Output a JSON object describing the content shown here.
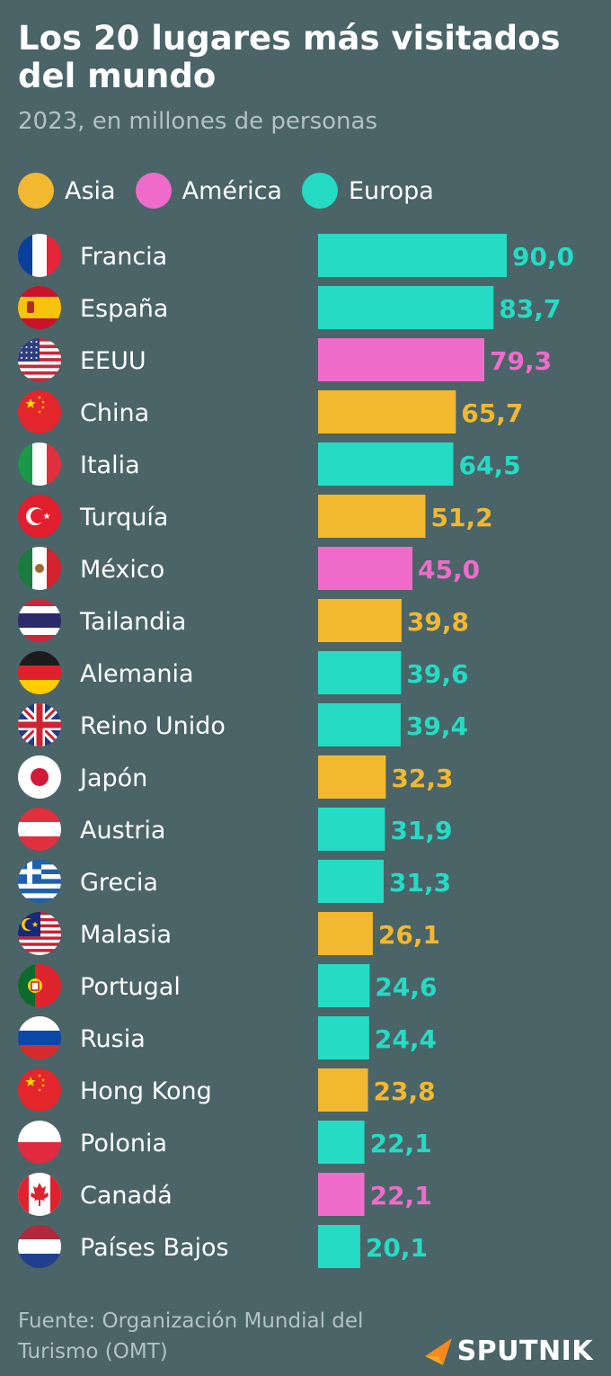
{
  "header": {
    "title": "Los 20 lugares más visitados del mundo",
    "subtitle": "2023, en millones de personas"
  },
  "colors": {
    "background": "#4a6468",
    "asia": "#f2b830",
    "america": "#ef6ccb",
    "europa": "#25dbc4",
    "muted_text": "#b3c2c4"
  },
  "legend": [
    {
      "key": "asia",
      "label": "Asia"
    },
    {
      "key": "america",
      "label": "América"
    },
    {
      "key": "europa",
      "label": "Europa"
    }
  ],
  "chart_data": {
    "type": "bar",
    "orientation": "horizontal",
    "title": "Los 20 lugares más visitados del mundo",
    "subtitle": "2023, en millones de personas",
    "xlim": [
      0,
      90
    ],
    "grid": false,
    "legend_position": "top-left",
    "categories": [
      "Francia",
      "España",
      "EEUU",
      "China",
      "Italia",
      "Turquía",
      "México",
      "Tailandia",
      "Alemania",
      "Reino Unido",
      "Japón",
      "Austria",
      "Grecia",
      "Malasia",
      "Portugal",
      "Rusia",
      "Hong Kong",
      "Polonia",
      "Canadá",
      "Países Bajos"
    ],
    "values": [
      90.0,
      83.7,
      79.3,
      65.7,
      64.5,
      51.2,
      45.0,
      39.8,
      39.6,
      39.4,
      32.3,
      31.9,
      31.3,
      26.1,
      24.6,
      24.4,
      23.8,
      22.1,
      22.1,
      20.1
    ],
    "value_labels": [
      "90,0",
      "83,7",
      "79,3",
      "65,7",
      "64,5",
      "51,2",
      "45,0",
      "39,8",
      "39,6",
      "39,4",
      "32,3",
      "31,9",
      "31,3",
      "26,1",
      "24,6",
      "24,4",
      "23,8",
      "22,1",
      "22,1",
      "20,1"
    ],
    "regions": [
      "europa",
      "europa",
      "america",
      "asia",
      "europa",
      "asia",
      "america",
      "asia",
      "europa",
      "europa",
      "asia",
      "europa",
      "europa",
      "asia",
      "europa",
      "europa",
      "asia",
      "europa",
      "america",
      "europa"
    ],
    "flag_icons": [
      "flag-france-icon",
      "flag-spain-icon",
      "flag-usa-icon",
      "flag-china-icon",
      "flag-italy-icon",
      "flag-turkey-icon",
      "flag-mexico-icon",
      "flag-thailand-icon",
      "flag-germany-icon",
      "flag-uk-icon",
      "flag-japan-icon",
      "flag-austria-icon",
      "flag-greece-icon",
      "flag-malaysia-icon",
      "flag-portugal-icon",
      "flag-russia-icon",
      "flag-hongkong-icon",
      "flag-poland-icon",
      "flag-canada-icon",
      "flag-netherlands-icon"
    ]
  },
  "footer": {
    "source": "Fuente: Organización Mundial del Turismo (OMT)",
    "logo_text": "SPUTNIK"
  }
}
